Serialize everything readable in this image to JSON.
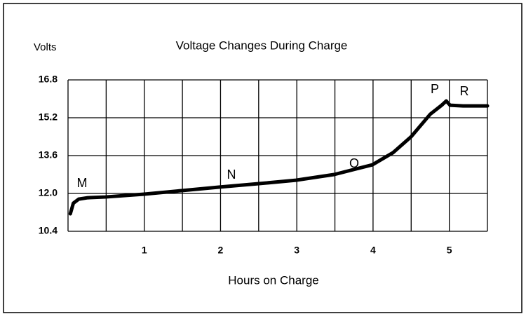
{
  "chart_data": {
    "type": "line",
    "title": "Voltage Changes During Charge",
    "y_label": "Volts",
    "x_label": "Hours on Charge",
    "x": [
      0.03,
      0.07,
      0.14,
      0.26,
      0.49,
      1.0,
      1.49,
      1.99,
      2.49,
      2.99,
      3.49,
      3.99,
      4.26,
      4.5,
      4.75,
      4.9,
      4.96,
      5.01,
      5.18,
      5.5
    ],
    "series": [
      {
        "name": "Voltage",
        "color": "#000000",
        "values": [
          11.14,
          11.59,
          11.76,
          11.82,
          11.85,
          11.97,
          12.12,
          12.27,
          12.41,
          12.56,
          12.8,
          13.21,
          13.72,
          14.4,
          15.35,
          15.73,
          15.91,
          15.73,
          15.7,
          15.7
        ]
      }
    ],
    "xlim": [
      0,
      5.5
    ],
    "xticks": [
      1,
      2,
      3,
      4,
      5
    ],
    "x_gridlines": [
      0,
      0.5,
      1,
      1.5,
      2,
      2.5,
      3,
      3.5,
      4,
      4.5,
      5,
      5.5
    ],
    "ylim": [
      10.4,
      16.8
    ],
    "yticks": [
      {
        "value": 10.4,
        "label": "10.4"
      },
      {
        "value": 12.0,
        "label": "12.0"
      },
      {
        "value": 13.6,
        "label": "13.6"
      },
      {
        "value": 15.2,
        "label": "15.2"
      },
      {
        "value": 16.8,
        "label": "16.8"
      }
    ],
    "grid": true,
    "annotations": [
      "M",
      "N",
      "O",
      "P",
      "R"
    ]
  }
}
